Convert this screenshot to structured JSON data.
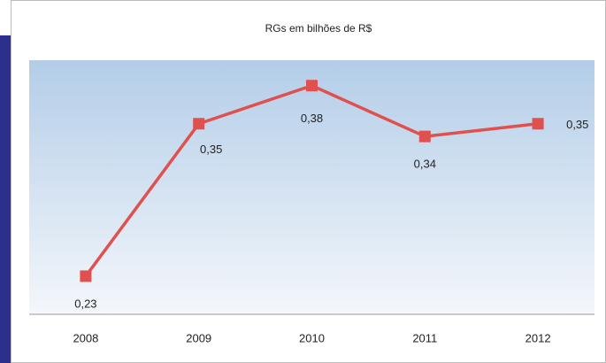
{
  "chart_data": {
    "type": "line",
    "title": "RGs em bilhões de R$",
    "categories": [
      "2008",
      "2009",
      "2010",
      "2011",
      "2012"
    ],
    "series": [
      {
        "name": "RGs",
        "color": "#e0504f",
        "values": [
          0.23,
          0.35,
          0.38,
          0.34,
          0.35
        ],
        "value_labels": [
          "0,23",
          "0,35",
          "0,38",
          "0,34",
          "0,35"
        ]
      }
    ],
    "ylim": [
      0.2,
      0.4
    ]
  }
}
